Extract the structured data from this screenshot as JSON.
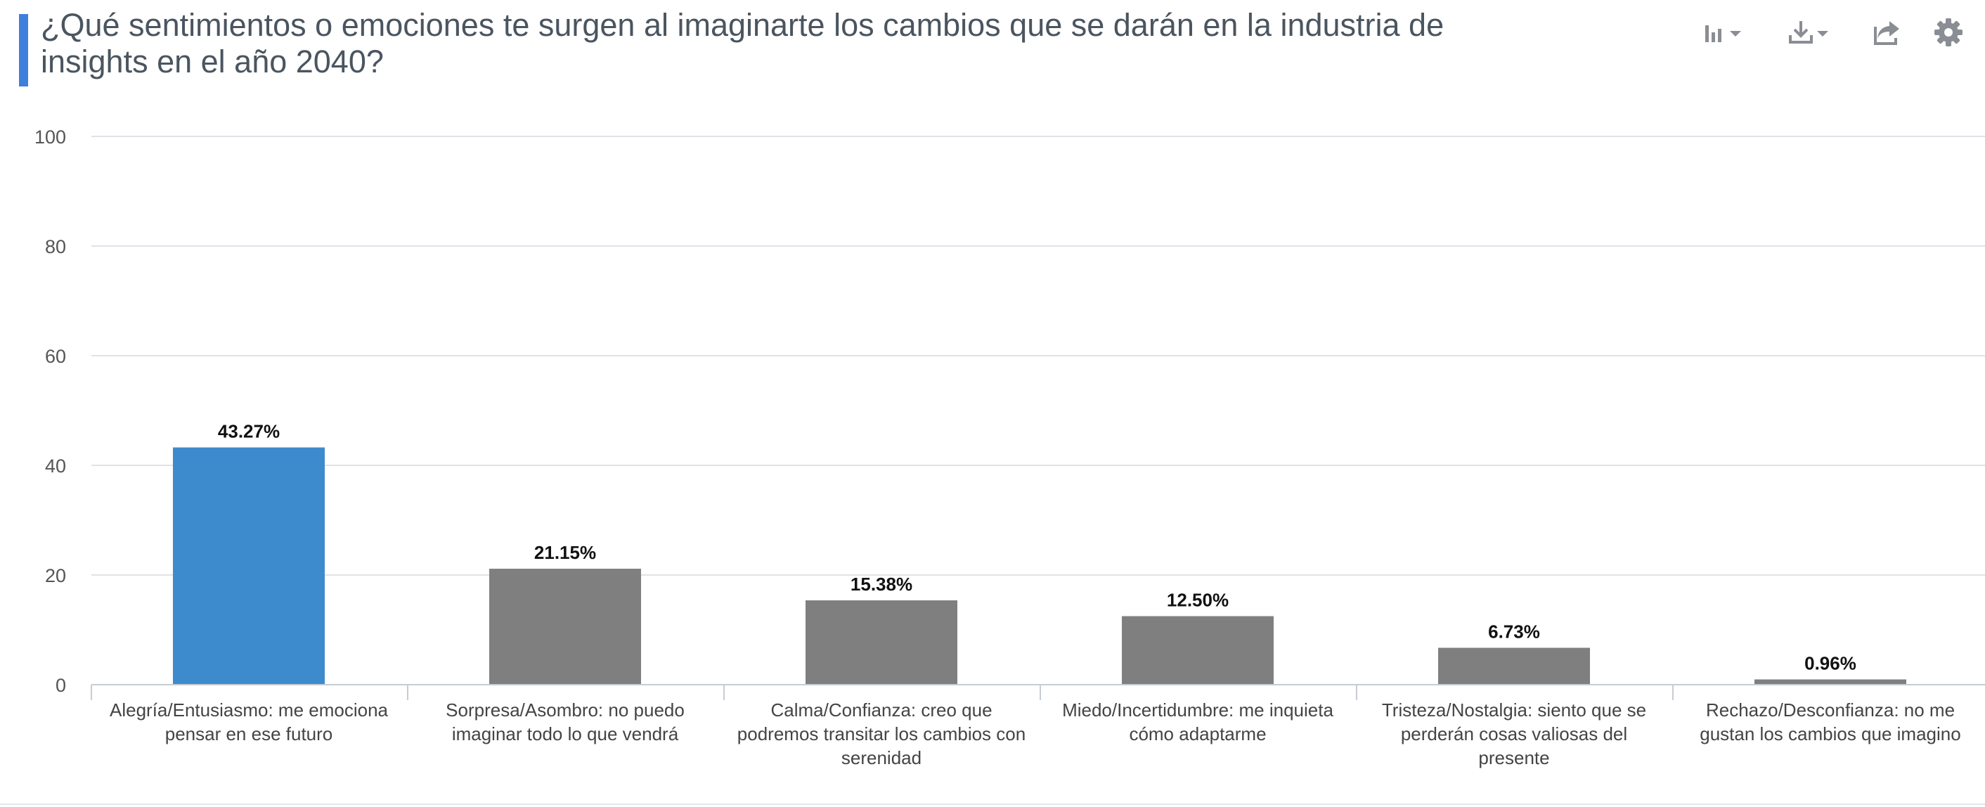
{
  "header": {
    "title": "¿Qué sentimientos o emociones te surgen al imaginarte los cambios que se darán en la industria de insights en el año 2040?",
    "accent_color": "#3f7fdc",
    "toolbar": [
      {
        "name": "chart-type-button",
        "icon": "bar-chart-icon",
        "dropdown": true
      },
      {
        "name": "download-button",
        "icon": "download-icon",
        "dropdown": true
      },
      {
        "name": "share-button",
        "icon": "share-icon",
        "dropdown": false
      },
      {
        "name": "settings-button",
        "icon": "gear-icon",
        "dropdown": false
      }
    ]
  },
  "chart_data": {
    "type": "bar",
    "categories": [
      "Alegría/Entusiasmo: me emociona pensar en ese futuro",
      "Sorpresa/Asombro: no puedo imaginar todo lo que vendrá",
      "Calma/Confianza: creo que podremos transitar los cambios con serenidad",
      "Miedo/Incertidumbre: me inquieta cómo adaptarme",
      "Tristeza/Nostalgia: siento que se perderán cosas valiosas del presente",
      "Rechazo/Desconfianza: no me gustan los cambios que imagino"
    ],
    "category_lines": [
      [
        "Alegría/Entusiasmo: me emociona",
        "pensar en ese futuro"
      ],
      [
        "Sorpresa/Asombro: no puedo",
        "imaginar todo lo que vendrá"
      ],
      [
        "Calma/Confianza: creo que",
        "podremos transitar los cambios con",
        "serenidad"
      ],
      [
        "Miedo/Incertidumbre: me inquieta",
        "cómo adaptarme"
      ],
      [
        "Tristeza/Nostalgia: siento que se",
        "perderán cosas valiosas del",
        "presente"
      ],
      [
        "Rechazo/Desconfianza: no me",
        "gustan los cambios que imagino"
      ]
    ],
    "values": [
      43.27,
      21.15,
      15.38,
      12.5,
      6.73,
      0.96
    ],
    "data_labels": [
      "43.27%",
      "21.15%",
      "15.38%",
      "12.50%",
      "6.73%",
      "0.96%"
    ],
    "bar_colors": [
      "#3d8bcd",
      "#7f7f7f",
      "#7f7f7f",
      "#7f7f7f",
      "#7f7f7f",
      "#7f7f7f"
    ],
    "title": "",
    "xlabel": "",
    "ylabel": "",
    "ylim": [
      0,
      100
    ],
    "yticks": [
      0,
      20,
      40,
      60,
      80,
      100
    ],
    "grid": true,
    "legend": "none"
  }
}
